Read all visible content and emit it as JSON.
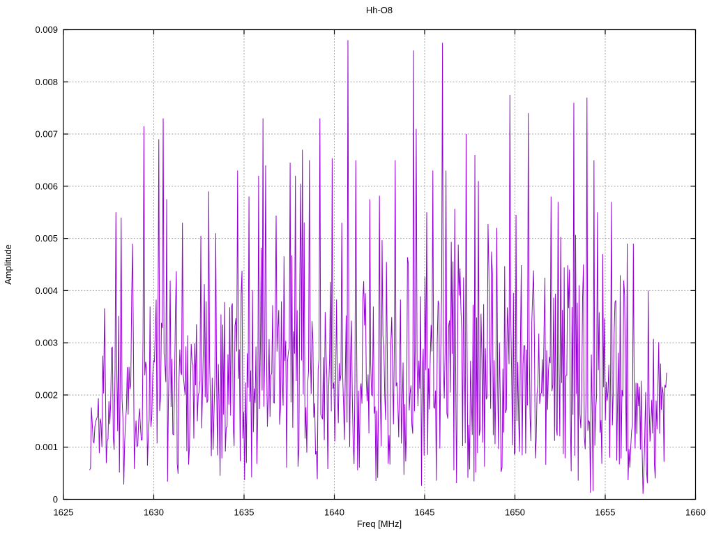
{
  "page": {
    "background": "#ffffff"
  },
  "chart_data": {
    "type": "line",
    "title": "Hh-O8",
    "xlabel": "Freq [MHz]",
    "ylabel": "Amplitude",
    "xlim": [
      1625,
      1660
    ],
    "ylim": [
      0,
      0.009
    ],
    "xticks": [
      1625,
      1630,
      1635,
      1640,
      1645,
      1650,
      1655,
      1660
    ],
    "xtick_labels": [
      "1625",
      "1630",
      "1635",
      "1640",
      "1645",
      "1650",
      "1655",
      "1660"
    ],
    "yticks": [
      0,
      0.001,
      0.002,
      0.003,
      0.004,
      0.005,
      0.006,
      0.007,
      0.008,
      0.009
    ],
    "ytick_labels": [
      "0",
      "0.001",
      "0.002",
      "0.003",
      "0.004",
      "0.005",
      "0.006",
      "0.007",
      "0.008",
      "0.009"
    ],
    "grid": {
      "show": true,
      "color": "#9a9a9a",
      "dash": "1.8,2.4"
    },
    "border_color": "#000000",
    "tick_length": 7,
    "legend": {
      "show": false
    },
    "series": [
      {
        "name": "Hh-O8",
        "color": "#9400d3",
        "style": "lines",
        "x_start": 1626.45,
        "x_end": 1658.4,
        "n_points": 660,
        "noise": {
          "distribution": "rayleigh",
          "sigma": 0.00195,
          "seed": 1337,
          "floor": 6e-05,
          "cap": 0.0088
        },
        "envelope": [
          [
            1626.45,
            0.45
          ],
          [
            1627.2,
            0.8
          ],
          [
            1628.0,
            1.0
          ],
          [
            1652.5,
            1.0
          ],
          [
            1654.8,
            0.95
          ],
          [
            1656.0,
            0.8
          ],
          [
            1657.3,
            0.72
          ],
          [
            1658.4,
            0.62
          ]
        ],
        "peaks": [
          [
            1627.9,
            0.0055
          ],
          [
            1628.2,
            0.0054
          ],
          [
            1629.45,
            0.00715
          ],
          [
            1630.3,
            0.0069
          ],
          [
            1630.5,
            0.0073
          ],
          [
            1630.7,
            0.00575
          ],
          [
            1631.6,
            0.0053
          ],
          [
            1632.6,
            0.00505
          ],
          [
            1633.05,
            0.0059
          ],
          [
            1633.45,
            0.0051
          ],
          [
            1634.65,
            0.0063
          ],
          [
            1635.8,
            0.0062
          ],
          [
            1636.05,
            0.0073
          ],
          [
            1636.2,
            0.0064
          ],
          [
            1637.55,
            0.00645
          ],
          [
            1637.85,
            0.0062
          ],
          [
            1638.25,
            0.0067
          ],
          [
            1638.6,
            0.0065
          ],
          [
            1639.2,
            0.0073
          ],
          [
            1640.4,
            0.0053
          ],
          [
            1641.2,
            0.0065
          ],
          [
            1641.95,
            0.00575
          ],
          [
            1643.35,
            0.0065
          ],
          [
            1644.4,
            0.0086
          ],
          [
            1644.55,
            0.0071
          ],
          [
            1645.1,
            0.0055
          ],
          [
            1645.45,
            0.0063
          ],
          [
            1646.0,
            0.00875
          ],
          [
            1646.2,
            0.0063
          ],
          [
            1647.3,
            0.007
          ],
          [
            1647.8,
            0.0066
          ],
          [
            1648.0,
            0.0061
          ],
          [
            1649.0,
            0.0052
          ],
          [
            1650.05,
            0.00545
          ],
          [
            1650.75,
            0.0074
          ],
          [
            1652.0,
            0.0058
          ],
          [
            1652.4,
            0.0057
          ],
          [
            1653.25,
            0.0076
          ],
          [
            1654.0,
            0.0077
          ],
          [
            1654.4,
            0.0065
          ],
          [
            1654.55,
            0.0055
          ],
          [
            1655.35,
            0.0057
          ],
          [
            1656.2,
            0.0049
          ],
          [
            1656.55,
            0.0049
          ],
          [
            1657.4,
            0.004
          ]
        ]
      }
    ]
  }
}
